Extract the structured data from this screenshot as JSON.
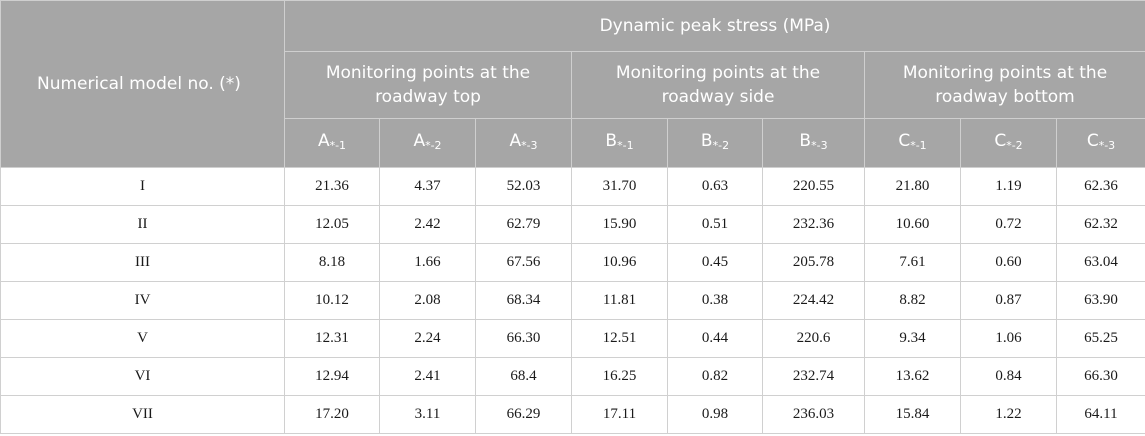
{
  "table": {
    "model_header": "Numerical model no. (*)",
    "super_header": "Dynamic peak stress (MPa)",
    "groups": [
      {
        "label": "Monitoring points at the roadway top",
        "columns": [
          {
            "base": "A",
            "sub": "*-1"
          },
          {
            "base": "A",
            "sub": "*-2"
          },
          {
            "base": "A",
            "sub": "*-3"
          }
        ]
      },
      {
        "label": "Monitoring points at the roadway side",
        "columns": [
          {
            "base": "B",
            "sub": "*-1"
          },
          {
            "base": "B",
            "sub": "*-2"
          },
          {
            "base": "B",
            "sub": "*-3"
          }
        ]
      },
      {
        "label": "Monitoring points at the roadway bottom",
        "columns": [
          {
            "base": "C",
            "sub": "*-1"
          },
          {
            "base": "C",
            "sub": "*-2"
          },
          {
            "base": "C",
            "sub": "*-3"
          }
        ]
      }
    ],
    "rows": [
      {
        "model": "I",
        "values": [
          "21.36",
          "4.37",
          "52.03",
          "31.70",
          "0.63",
          "220.55",
          "21.80",
          "1.19",
          "62.36"
        ]
      },
      {
        "model": "II",
        "values": [
          "12.05",
          "2.42",
          "62.79",
          "15.90",
          "0.51",
          "232.36",
          "10.60",
          "0.72",
          "62.32"
        ]
      },
      {
        "model": "III",
        "values": [
          "8.18",
          "1.66",
          "67.56",
          "10.96",
          "0.45",
          "205.78",
          "7.61",
          "0.60",
          "63.04"
        ]
      },
      {
        "model": "IV",
        "values": [
          "10.12",
          "2.08",
          "68.34",
          "11.81",
          "0.38",
          "224.42",
          "8.82",
          "0.87",
          "63.90"
        ]
      },
      {
        "model": "V",
        "values": [
          "12.31",
          "2.24",
          "66.30",
          "12.51",
          "0.44",
          "220.6",
          "9.34",
          "1.06",
          "65.25"
        ]
      },
      {
        "model": "VI",
        "values": [
          "12.94",
          "2.41",
          "68.4",
          "16.25",
          "0.82",
          "232.74",
          "13.62",
          "0.84",
          "66.30"
        ]
      },
      {
        "model": "VII",
        "values": [
          "17.20",
          "3.11",
          "66.29",
          "17.11",
          "0.98",
          "236.03",
          "15.84",
          "1.22",
          "64.11"
        ]
      }
    ]
  },
  "colors": {
    "header_bg": "#a6a6a6",
    "header_text": "#ffffff",
    "grid": "#d0d0d0"
  }
}
